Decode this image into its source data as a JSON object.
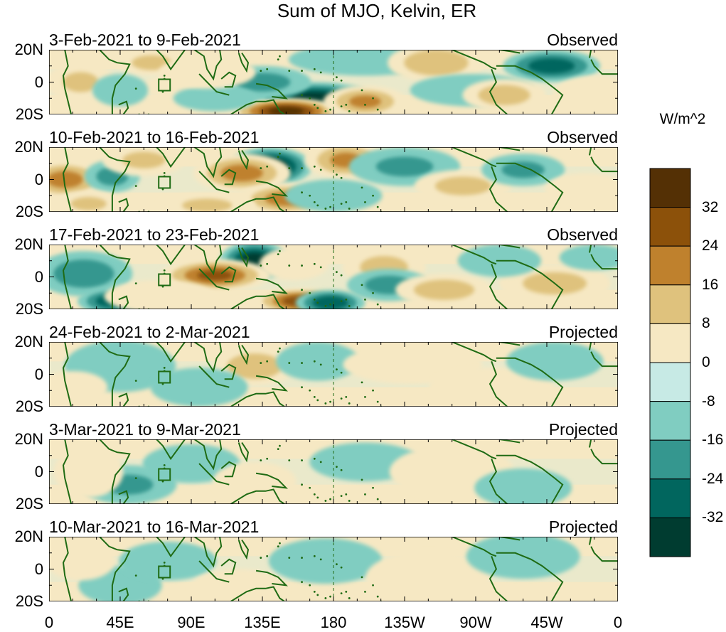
{
  "title": "Sum of MJO, Kelvin, ER",
  "chart_data": {
    "type": "heatmap",
    "title": "Sum of MJO, Kelvin, ER",
    "colorbar": {
      "units": "W/m^2",
      "tick_labels": [
        "32",
        "24",
        "16",
        "8",
        "0",
        "-8",
        "-16",
        "-24",
        "-32"
      ],
      "bins": [
        {
          "range": ">36",
          "color": "#543005"
        },
        {
          "range": "28 to 36",
          "color": "#8c510a"
        },
        {
          "range": "20 to 28",
          "color": "#bf812d"
        },
        {
          "range": "12 to 20",
          "color": "#dfc27d"
        },
        {
          "range": "4 to 12",
          "color": "#f6e8c3"
        },
        {
          "range": "-4 to 4",
          "color": "#c7eae5"
        },
        {
          "range": "-12 to -4",
          "color": "#80cdc1"
        },
        {
          "range": "-20 to -12",
          "color": "#35978f"
        },
        {
          "range": "-28 to -20",
          "color": "#01665e"
        },
        {
          "range": "<-28",
          "color": "#003c30"
        }
      ]
    },
    "lat_ticks": [
      "20N",
      "0",
      "20S"
    ],
    "lon_ticks": [
      "0",
      "45E",
      "90E",
      "135E",
      "180",
      "135W",
      "90W",
      "45W",
      "0"
    ],
    "xlim": [
      0,
      360
    ],
    "ylim": [
      -20,
      20
    ],
    "panels": [
      {
        "period": "3-Feb-2021 to 9-Feb-2021",
        "type": "Observed",
        "anomalies": [
          {
            "lon": 168,
            "lat": -10,
            "sx": 18,
            "sy": 5,
            "v": -32
          },
          {
            "lon": 150,
            "lat": -18,
            "sx": 16,
            "sy": 4,
            "v": 40
          },
          {
            "lon": 135,
            "lat": 0,
            "sx": 14,
            "sy": 5,
            "v": -16
          },
          {
            "lon": 200,
            "lat": 14,
            "sx": 22,
            "sy": 5,
            "v": -12
          },
          {
            "lon": 200,
            "lat": -12,
            "sx": 12,
            "sy": 5,
            "v": 22
          },
          {
            "lon": 245,
            "lat": 12,
            "sx": 14,
            "sy": 6,
            "v": 20
          },
          {
            "lon": 318,
            "lat": 10,
            "sx": 14,
            "sy": 5,
            "v": -26
          },
          {
            "lon": 268,
            "lat": -5,
            "sx": 18,
            "sy": 5,
            "v": -10
          },
          {
            "lon": 65,
            "lat": 12,
            "sx": 10,
            "sy": 4,
            "v": 16
          },
          {
            "lon": 85,
            "lat": -3,
            "sx": 12,
            "sy": 4,
            "v": 12
          },
          {
            "lon": 105,
            "lat": -10,
            "sx": 12,
            "sy": 4,
            "v": -10
          },
          {
            "lon": 20,
            "lat": 0,
            "sx": 10,
            "sy": 6,
            "v": 14
          },
          {
            "lon": 45,
            "lat": -5,
            "sx": 8,
            "sy": 5,
            "v": -12
          },
          {
            "lon": 100,
            "lat": 6,
            "sx": 14,
            "sy": 5,
            "v": 12
          },
          {
            "lon": 288,
            "lat": -8,
            "sx": 12,
            "sy": 5,
            "v": 18
          },
          {
            "lon": 345,
            "lat": -8,
            "sx": 12,
            "sy": 6,
            "v": 10
          }
        ]
      },
      {
        "period": "10-Feb-2021 to 16-Feb-2021",
        "type": "Observed",
        "anomalies": [
          {
            "lon": 140,
            "lat": 8,
            "sx": 12,
            "sy": 6,
            "v": -36
          },
          {
            "lon": 122,
            "lat": 4,
            "sx": 14,
            "sy": 6,
            "v": 24
          },
          {
            "lon": 10,
            "lat": 0,
            "sx": 12,
            "sy": 6,
            "v": 24
          },
          {
            "lon": 40,
            "lat": 2,
            "sx": 8,
            "sy": 5,
            "v": -16
          },
          {
            "lon": 60,
            "lat": 12,
            "sx": 12,
            "sy": 5,
            "v": 14
          },
          {
            "lon": 188,
            "lat": 12,
            "sx": 12,
            "sy": 6,
            "v": 22
          },
          {
            "lon": 225,
            "lat": 8,
            "sx": 16,
            "sy": 6,
            "v": -14
          },
          {
            "lon": 150,
            "lat": -12,
            "sx": 14,
            "sy": 5,
            "v": 24
          },
          {
            "lon": 100,
            "lat": -16,
            "sx": 14,
            "sy": 4,
            "v": 14
          },
          {
            "lon": 180,
            "lat": -10,
            "sx": 14,
            "sy": 5,
            "v": -12
          },
          {
            "lon": 262,
            "lat": -4,
            "sx": 14,
            "sy": 5,
            "v": 16
          },
          {
            "lon": 300,
            "lat": 6,
            "sx": 12,
            "sy": 5,
            "v": -14
          },
          {
            "lon": 340,
            "lat": -6,
            "sx": 12,
            "sy": 5,
            "v": 10
          },
          {
            "lon": 25,
            "lat": -15,
            "sx": 10,
            "sy": 4,
            "v": 14
          }
        ]
      },
      {
        "period": "17-Feb-2021 to 23-Feb-2021",
        "type": "Observed",
        "anomalies": [
          {
            "lon": 130,
            "lat": 10,
            "sx": 10,
            "sy": 6,
            "v": -34
          },
          {
            "lon": 105,
            "lat": 1,
            "sx": 16,
            "sy": 5,
            "v": 30
          },
          {
            "lon": 160,
            "lat": -15,
            "sx": 14,
            "sy": 4,
            "v": 34
          },
          {
            "lon": 178,
            "lat": -16,
            "sx": 10,
            "sy": 4,
            "v": -28
          },
          {
            "lon": 22,
            "lat": 2,
            "sx": 14,
            "sy": 7,
            "v": -18
          },
          {
            "lon": 40,
            "lat": -15,
            "sx": 10,
            "sy": 4,
            "v": -26
          },
          {
            "lon": 155,
            "lat": 8,
            "sx": 10,
            "sy": 5,
            "v": 12
          },
          {
            "lon": 212,
            "lat": 6,
            "sx": 12,
            "sy": 6,
            "v": 16
          },
          {
            "lon": 215,
            "lat": -5,
            "sx": 12,
            "sy": 5,
            "v": -16
          },
          {
            "lon": 250,
            "lat": -8,
            "sx": 14,
            "sy": 5,
            "v": 18
          },
          {
            "lon": 320,
            "lat": -4,
            "sx": 16,
            "sy": 6,
            "v": 16
          },
          {
            "lon": 285,
            "lat": 10,
            "sx": 12,
            "sy": 5,
            "v": -12
          },
          {
            "lon": 70,
            "lat": -12,
            "sx": 16,
            "sy": 5,
            "v": 10
          },
          {
            "lon": 345,
            "lat": 12,
            "sx": 10,
            "sy": 4,
            "v": -10
          }
        ]
      },
      {
        "period": "24-Feb-2021 to 2-Mar-2021",
        "type": "Projected",
        "anomalies": [
          {
            "lon": 130,
            "lat": 5,
            "sx": 12,
            "sy": 6,
            "v": 20
          },
          {
            "lon": 45,
            "lat": 5,
            "sx": 16,
            "sy": 8,
            "v": -9
          },
          {
            "lon": 95,
            "lat": -8,
            "sx": 14,
            "sy": 6,
            "v": -9
          },
          {
            "lon": 15,
            "lat": -8,
            "sx": 10,
            "sy": 5,
            "v": 8
          },
          {
            "lon": 170,
            "lat": 8,
            "sx": 12,
            "sy": 6,
            "v": -6
          },
          {
            "lon": 230,
            "lat": 6,
            "sx": 20,
            "sy": 6,
            "v": 8
          },
          {
            "lon": 280,
            "lat": -8,
            "sx": 18,
            "sy": 6,
            "v": 8
          },
          {
            "lon": 320,
            "lat": 8,
            "sx": 14,
            "sy": 6,
            "v": -6
          }
        ]
      },
      {
        "period": "3-Mar-2021 to 9-Mar-2021",
        "type": "Projected",
        "anomalies": [
          {
            "lon": 50,
            "lat": -8,
            "sx": 14,
            "sy": 6,
            "v": -14
          },
          {
            "lon": 90,
            "lat": 5,
            "sx": 14,
            "sy": 6,
            "v": -8
          },
          {
            "lon": 25,
            "lat": 0,
            "sx": 10,
            "sy": 8,
            "v": 8
          },
          {
            "lon": 130,
            "lat": -6,
            "sx": 12,
            "sy": 6,
            "v": 8
          },
          {
            "lon": 200,
            "lat": 6,
            "sx": 16,
            "sy": 6,
            "v": -6
          },
          {
            "lon": 255,
            "lat": 0,
            "sx": 18,
            "sy": 8,
            "v": 6
          },
          {
            "lon": 300,
            "lat": -10,
            "sx": 14,
            "sy": 6,
            "v": -6
          }
        ]
      },
      {
        "period": "10-Mar-2021 to 16-Mar-2021",
        "type": "Projected",
        "anomalies": [
          {
            "lon": 45,
            "lat": -10,
            "sx": 12,
            "sy": 6,
            "v": -8
          },
          {
            "lon": 75,
            "lat": 5,
            "sx": 14,
            "sy": 6,
            "v": -6
          },
          {
            "lon": 20,
            "lat": 5,
            "sx": 10,
            "sy": 6,
            "v": 8
          },
          {
            "lon": 120,
            "lat": -12,
            "sx": 14,
            "sy": 6,
            "v": 6
          },
          {
            "lon": 175,
            "lat": 5,
            "sx": 14,
            "sy": 6,
            "v": -5
          },
          {
            "lon": 240,
            "lat": -5,
            "sx": 18,
            "sy": 8,
            "v": 6
          },
          {
            "lon": 300,
            "lat": 8,
            "sx": 14,
            "sy": 6,
            "v": -5
          }
        ]
      }
    ]
  }
}
